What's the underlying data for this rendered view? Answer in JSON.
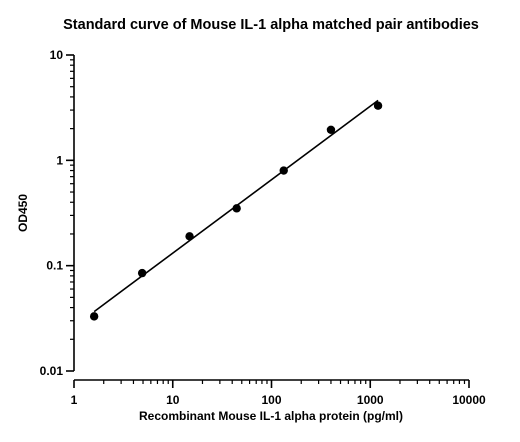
{
  "chart_data": {
    "type": "scatter",
    "title": "Standard curve of Mouse IL-1 alpha matched pair antibodies",
    "xlabel": "Recombinant Mouse IL-1 alpha protein (pg/ml)",
    "ylabel": "OD450",
    "xscale": "log",
    "yscale": "log",
    "xlim": [
      1,
      10000
    ],
    "ylim": [
      0.01,
      10
    ],
    "x_ticks": [
      "1",
      "10",
      "100",
      "1000",
      "10000"
    ],
    "y_ticks": [
      "0.01",
      "0.1",
      "1",
      "10"
    ],
    "grid": false,
    "series": [
      {
        "x": [
          1.6,
          4.9,
          14.8,
          44.4,
          133,
          400,
          1200
        ],
        "y": [
          0.033,
          0.085,
          0.19,
          0.35,
          0.8,
          1.95,
          3.3
        ],
        "marker": "circle",
        "fit_line": true,
        "color": "#000000"
      }
    ]
  }
}
